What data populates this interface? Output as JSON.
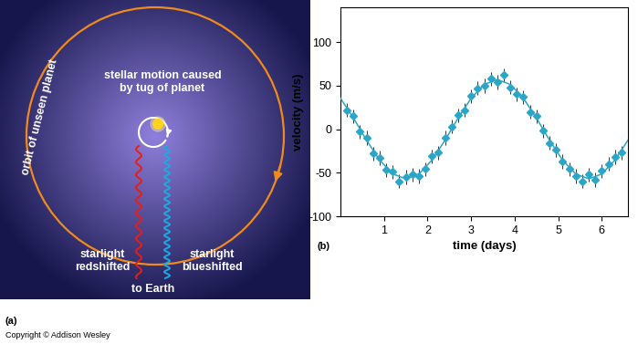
{
  "diagram": {
    "panel_label": "(a)",
    "orbit_label": "orbit of unseen planet",
    "star_label": "stellar motion caused\nby tug of planet",
    "red_label": "starlight\nredshifted",
    "blue_label": "starlight\nblueshifted",
    "earth_label": "to Earth"
  },
  "copyright": "Copyright © Addison Wesley",
  "chart_data": {
    "type": "line",
    "panel_label": "(b)",
    "x_label": "time (days)",
    "y_label": "velocity (m/s)",
    "xlim": [
      0,
      6.6
    ],
    "ylim": [
      -100,
      140
    ],
    "xticks": [
      1,
      2,
      3,
      4,
      5,
      6
    ],
    "yticks": [
      -100,
      -50,
      0,
      50,
      100
    ],
    "grid": false,
    "series": [
      {
        "type": "scatter",
        "color": "#29a6c8",
        "marker": "diamond",
        "x": [
          0.15,
          0.3,
          0.45,
          0.6,
          0.75,
          0.9,
          1.05,
          1.2,
          1.35,
          1.5,
          1.65,
          1.8,
          1.95,
          2.1,
          2.25,
          2.4,
          2.55,
          2.7,
          2.85,
          3.0,
          3.15,
          3.3,
          3.45,
          3.6,
          3.75,
          3.9,
          4.05,
          4.2,
          4.35,
          4.5,
          4.65,
          4.8,
          4.95,
          5.1,
          5.25,
          5.4,
          5.55,
          5.7,
          5.85,
          6.0,
          6.15,
          6.3,
          6.45
        ],
        "values": [
          22,
          15,
          -3,
          -10,
          -28,
          -33,
          -47,
          -49,
          -60,
          -55,
          -52,
          -54,
          -46,
          -31,
          -27,
          -10,
          3,
          16,
          22,
          38,
          47,
          50,
          58,
          54,
          62,
          48,
          40,
          37,
          20,
          15,
          -2,
          -16,
          -24,
          -37,
          -46,
          -54,
          -60,
          -52,
          -58,
          -48,
          -40,
          -32,
          -27
        ],
        "errors": [
          8,
          8,
          8,
          8,
          8,
          8,
          8,
          8,
          8,
          8,
          8,
          8,
          8,
          8,
          8,
          8,
          8,
          8,
          8,
          8,
          8,
          8,
          8,
          8,
          8,
          8,
          8,
          8,
          8,
          8,
          8,
          8,
          8,
          8,
          8,
          8,
          8,
          8,
          8,
          8,
          8,
          8,
          8
        ]
      },
      {
        "type": "line",
        "color": "#29a6c8",
        "line_style": "solid",
        "x": [
          0,
          0.3,
          0.6,
          0.9,
          1.2,
          1.5,
          1.8,
          2.1,
          2.4,
          2.7,
          3.0,
          3.3,
          3.6,
          3.9,
          4.2,
          4.5,
          4.8,
          5.1,
          5.4,
          5.7,
          6.0,
          6.3,
          6.6
        ],
        "values": [
          35.6,
          12.7,
          -12.7,
          -35.6,
          -51.4,
          -57,
          -51.4,
          -35.6,
          -12.7,
          12.7,
          35.6,
          51.4,
          57,
          51.4,
          35.6,
          12.7,
          -12.7,
          -35.6,
          -51.4,
          -57,
          -51.4,
          -35.6,
          -12.7
        ]
      }
    ]
  }
}
